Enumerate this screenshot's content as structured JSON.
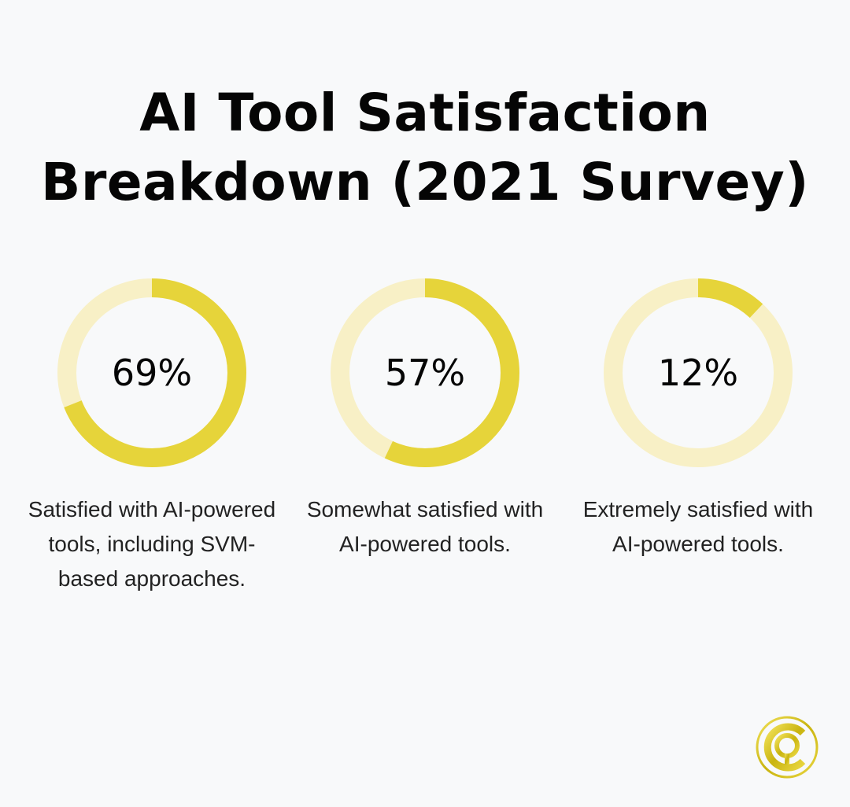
{
  "title_lines": [
    "AI Tool Satisfaction",
    "Breakdown (2021 Survey)"
  ],
  "colors": {
    "fill": "#e6d43a",
    "track": "#f8f0c6",
    "background": "#f8f9fa"
  },
  "chart_data": {
    "type": "pie",
    "title": "AI Tool Satisfaction Breakdown (2021 Survey)",
    "items": [
      {
        "label": "69%",
        "value": 69,
        "description": "Satisfied with AI-powered tools, including SVM-based approaches."
      },
      {
        "label": "57%",
        "value": 57,
        "description": "Somewhat satisfied with AI-powered tools."
      },
      {
        "label": "12%",
        "value": 12,
        "description": "Extremely satisfied with AI-powered tools."
      }
    ]
  },
  "logo": {
    "icon": "gold-circle-q-logo"
  }
}
